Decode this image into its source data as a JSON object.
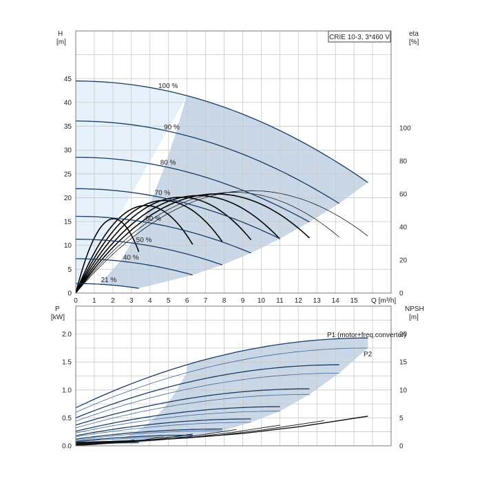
{
  "colors": {
    "curve_dark": "#163a68",
    "curve_mid": "#24507f",
    "curve_thin": "#3f6696",
    "envelope_fill": "#c9d7e6",
    "upper_fill": "#e6f0fb",
    "npsh_black": "#111111",
    "eff_black": "#000000",
    "label_blue": "#2a5c92"
  },
  "chart_data": [
    {
      "type": "line",
      "panel": "head",
      "legend_box": "CRIE 10-3, 3*460 V",
      "ylabel_left": "H",
      "ylabel_left_unit": "[m]",
      "ylabel_right": "eta",
      "ylabel_right_unit": "[%]",
      "xlabel": "Q [m³/h]",
      "xlim": [
        0,
        17
      ],
      "ylim": [
        0,
        55
      ],
      "ylim_right": [
        0,
        158.6
      ],
      "x_ticks": [
        "0",
        "1",
        "2",
        "3",
        "4",
        "5",
        "6",
        "7",
        "8",
        "9",
        "10",
        "11",
        "12",
        "13",
        "14",
        "15"
      ],
      "y_ticks": [
        "0",
        "5",
        "10",
        "15",
        "20",
        "25",
        "30",
        "35",
        "40",
        "45"
      ],
      "y_right_ticks": [
        "0",
        "20",
        "40",
        "60",
        "80",
        "100"
      ],
      "grid": true,
      "head_curves": [
        {
          "label": "100 %",
          "shutoff_head": 44.5,
          "q_max": 15.75,
          "h_at_qmax": 23.2
        },
        {
          "label": "90 %",
          "shutoff_head": 36.1,
          "q_max": 14.2,
          "h_at_qmax": 18.8
        },
        {
          "label": "80 %",
          "shutoff_head": 28.5,
          "q_max": 12.6,
          "h_at_qmax": 14.9
        },
        {
          "label": "70 %",
          "shutoff_head": 21.9,
          "q_max": 11.0,
          "h_at_qmax": 11.4
        },
        {
          "label": "60 %",
          "shutoff_head": 16.1,
          "q_max": 9.45,
          "h_at_qmax": 8.4
        },
        {
          "label": "50 %",
          "shutoff_head": 11.3,
          "q_max": 7.9,
          "h_at_qmax": 5.9
        },
        {
          "label": "40 %",
          "shutoff_head": 7.2,
          "q_max": 6.3,
          "h_at_qmax": 3.8
        },
        {
          "label": "21 %",
          "shutoff_head": 2.0,
          "q_max": 3.4,
          "h_at_qmax": 1.0
        }
      ],
      "efficiency_curves": [
        {
          "peak_eta": 62,
          "q_end": 15.75
        },
        {
          "peak_eta": 61,
          "q_end": 14.2
        },
        {
          "peak_eta": 60,
          "q_end": 12.6
        },
        {
          "peak_eta": 59,
          "q_end": 11.0
        },
        {
          "peak_eta": 58,
          "q_end": 9.45
        },
        {
          "peak_eta": 56,
          "q_end": 7.9
        },
        {
          "peak_eta": 53,
          "q_end": 6.3
        },
        {
          "peak_eta": 45,
          "q_end": 3.4
        }
      ]
    },
    {
      "type": "line",
      "panel": "power",
      "ylabel_left": "P",
      "ylabel_left_unit": "[kW]",
      "ylabel_right": "NPSH",
      "ylabel_right_unit": "[m]",
      "xlim": [
        0,
        17
      ],
      "ylim": [
        0,
        2.0
      ],
      "ylim_right": [
        0,
        20
      ],
      "y_ticks": [
        "0.0",
        "0.5",
        "1.0",
        "1.5",
        "2.0"
      ],
      "y_right_ticks": [
        "0",
        "5",
        "10",
        "15",
        "20"
      ],
      "grid": true,
      "series_labels": [
        "P1 (motor+freq.converter)",
        "P2"
      ],
      "power_curves": [
        {
          "speed": "100 %",
          "p1_start": 0.68,
          "p1_end": 1.93,
          "p2_start": 0.6,
          "p2_end": 1.75,
          "q_end": 15.75
        },
        {
          "speed": "90 %",
          "p1_start": 0.5,
          "p1_end": 1.45,
          "p2_start": 0.44,
          "p2_end": 1.3,
          "q_end": 14.2
        },
        {
          "speed": "80 %",
          "p1_start": 0.37,
          "p1_end": 1.02,
          "p2_start": 0.32,
          "p2_end": 0.92,
          "q_end": 12.6
        },
        {
          "speed": "70 %",
          "p1_start": 0.26,
          "p1_end": 0.7,
          "p2_start": 0.23,
          "p2_end": 0.62,
          "q_end": 11.0
        },
        {
          "speed": "60 %",
          "p1_start": 0.18,
          "p1_end": 0.48,
          "p2_start": 0.16,
          "p2_end": 0.42,
          "q_end": 9.45
        },
        {
          "speed": "50 %",
          "p1_start": 0.12,
          "p1_end": 0.3,
          "p2_start": 0.1,
          "p2_end": 0.27,
          "q_end": 7.9
        },
        {
          "speed": "40 %",
          "p1_start": 0.08,
          "p1_end": 0.19,
          "p2_start": 0.07,
          "p2_end": 0.16,
          "q_end": 6.3
        },
        {
          "speed": "21 %",
          "p1_start": 0.03,
          "p1_end": 0.06,
          "p2_start": 0.02,
          "p2_end": 0.05,
          "q_end": 3.4
        }
      ],
      "npsh_curve": [
        {
          "q": 0,
          "npsh": 0.6
        },
        {
          "q": 3,
          "npsh": 0.9
        },
        {
          "q": 6,
          "npsh": 1.4
        },
        {
          "q": 9,
          "npsh": 2.2
        },
        {
          "q": 12,
          "npsh": 3.4
        },
        {
          "q": 15.75,
          "npsh": 5.3
        }
      ]
    }
  ]
}
